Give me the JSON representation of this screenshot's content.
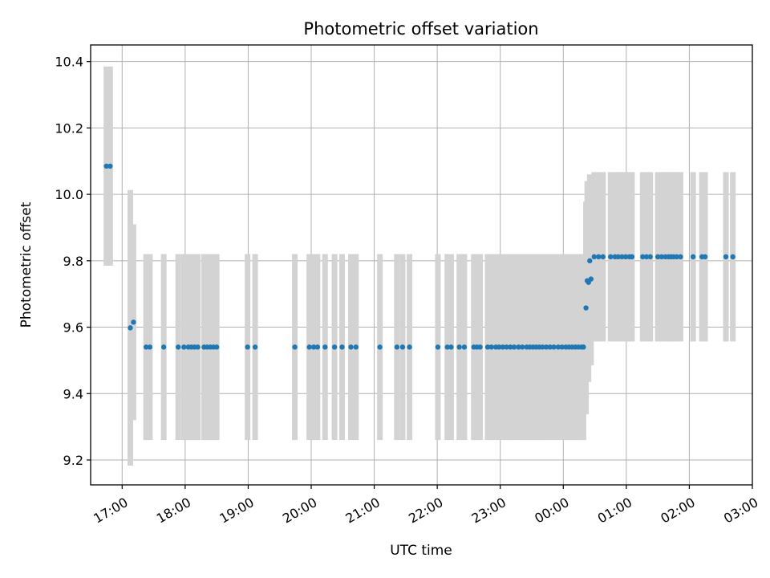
{
  "chart_data": {
    "type": "scatter",
    "title": "Photometric offset variation",
    "xlabel": "UTC time",
    "ylabel": "Photometric offset",
    "x_unit": "hours since 00:00 UTC of first night",
    "xlim": [
      16.5,
      27.0
    ],
    "ylim": [
      9.125,
      10.45
    ],
    "yticks": [
      9.2,
      9.4,
      9.6,
      9.8,
      10.0,
      10.2,
      10.4
    ],
    "xticks": [
      {
        "value": 17,
        "label": "17:00"
      },
      {
        "value": 18,
        "label": "18:00"
      },
      {
        "value": 19,
        "label": "19:00"
      },
      {
        "value": 20,
        "label": "20:00"
      },
      {
        "value": 21,
        "label": "21:00"
      },
      {
        "value": 22,
        "label": "22:00"
      },
      {
        "value": 23,
        "label": "23:00"
      },
      {
        "value": 24,
        "label": "00:00"
      },
      {
        "value": 25,
        "label": "01:00"
      },
      {
        "value": 26,
        "label": "02:00"
      },
      {
        "value": 27,
        "label": "03:00"
      }
    ],
    "grid": true,
    "point_color": "#1f77b4",
    "errorbar_color": "#d3d3d3",
    "points": [
      [
        16.75,
        10.085,
        0.3
      ],
      [
        16.81,
        10.085,
        0.3
      ],
      [
        17.13,
        9.598,
        0.415
      ],
      [
        17.18,
        9.615,
        0.295
      ],
      [
        17.38,
        9.54,
        0.28
      ],
      [
        17.44,
        9.54,
        0.28
      ],
      [
        17.66,
        9.54,
        0.28
      ],
      [
        17.89,
        9.54,
        0.28
      ],
      [
        17.98,
        9.54,
        0.28
      ],
      [
        18.05,
        9.54,
        0.28
      ],
      [
        18.1,
        9.54,
        0.28
      ],
      [
        18.15,
        9.54,
        0.28
      ],
      [
        18.2,
        9.54,
        0.28
      ],
      [
        18.3,
        9.54,
        0.28
      ],
      [
        18.35,
        9.54,
        0.28
      ],
      [
        18.4,
        9.54,
        0.28
      ],
      [
        18.45,
        9.54,
        0.28
      ],
      [
        18.5,
        9.54,
        0.28
      ],
      [
        18.99,
        9.54,
        0.28
      ],
      [
        19.11,
        9.54,
        0.28
      ],
      [
        19.74,
        9.54,
        0.28
      ],
      [
        19.97,
        9.54,
        0.28
      ],
      [
        20.04,
        9.54,
        0.28
      ],
      [
        20.1,
        9.54,
        0.28
      ],
      [
        20.22,
        9.54,
        0.28
      ],
      [
        20.37,
        9.54,
        0.28
      ],
      [
        20.49,
        9.54,
        0.28
      ],
      [
        20.63,
        9.54,
        0.28
      ],
      [
        20.71,
        9.54,
        0.28
      ],
      [
        21.09,
        9.54,
        0.28
      ],
      [
        21.36,
        9.54,
        0.28
      ],
      [
        21.45,
        9.54,
        0.28
      ],
      [
        21.56,
        9.54,
        0.28
      ],
      [
        22.01,
        9.54,
        0.28
      ],
      [
        22.16,
        9.54,
        0.28
      ],
      [
        22.22,
        9.54,
        0.28
      ],
      [
        22.35,
        9.54,
        0.28
      ],
      [
        22.43,
        9.54,
        0.28
      ],
      [
        22.58,
        9.54,
        0.28
      ],
      [
        22.63,
        9.54,
        0.28
      ],
      [
        22.68,
        9.54,
        0.28
      ],
      [
        22.8,
        9.54,
        0.28
      ],
      [
        22.86,
        9.54,
        0.28
      ],
      [
        22.93,
        9.54,
        0.28
      ],
      [
        22.98,
        9.54,
        0.28
      ],
      [
        23.04,
        9.54,
        0.28
      ],
      [
        23.1,
        9.54,
        0.28
      ],
      [
        23.16,
        9.54,
        0.28
      ],
      [
        23.22,
        9.54,
        0.28
      ],
      [
        23.29,
        9.54,
        0.28
      ],
      [
        23.35,
        9.54,
        0.28
      ],
      [
        23.42,
        9.54,
        0.28
      ],
      [
        23.47,
        9.54,
        0.28
      ],
      [
        23.52,
        9.54,
        0.28
      ],
      [
        23.57,
        9.54,
        0.28
      ],
      [
        23.62,
        9.54,
        0.28
      ],
      [
        23.67,
        9.54,
        0.28
      ],
      [
        23.73,
        9.54,
        0.28
      ],
      [
        23.79,
        9.54,
        0.28
      ],
      [
        23.85,
        9.54,
        0.28
      ],
      [
        23.92,
        9.54,
        0.28
      ],
      [
        23.98,
        9.54,
        0.28
      ],
      [
        24.04,
        9.54,
        0.28
      ],
      [
        24.09,
        9.54,
        0.28
      ],
      [
        24.14,
        9.54,
        0.28
      ],
      [
        24.19,
        9.54,
        0.28
      ],
      [
        24.24,
        9.54,
        0.28
      ],
      [
        24.29,
        9.54,
        0.28
      ],
      [
        24.32,
        9.54,
        0.28
      ],
      [
        24.36,
        9.658,
        0.32
      ],
      [
        24.38,
        9.74,
        0.3
      ],
      [
        24.4,
        9.735,
        0.3
      ],
      [
        24.42,
        9.8,
        0.26
      ],
      [
        24.44,
        9.745,
        0.26
      ],
      [
        24.49,
        9.812,
        0.255
      ],
      [
        24.56,
        9.812,
        0.255
      ],
      [
        24.63,
        9.812,
        0.255
      ],
      [
        24.75,
        9.812,
        0.255
      ],
      [
        24.82,
        9.812,
        0.255
      ],
      [
        24.87,
        9.812,
        0.255
      ],
      [
        24.93,
        9.812,
        0.255
      ],
      [
        24.99,
        9.812,
        0.255
      ],
      [
        25.05,
        9.812,
        0.255
      ],
      [
        25.09,
        9.812,
        0.255
      ],
      [
        25.26,
        9.812,
        0.255
      ],
      [
        25.32,
        9.812,
        0.255
      ],
      [
        25.38,
        9.812,
        0.255
      ],
      [
        25.5,
        9.812,
        0.255
      ],
      [
        25.56,
        9.812,
        0.255
      ],
      [
        25.62,
        9.812,
        0.255
      ],
      [
        25.67,
        9.812,
        0.255
      ],
      [
        25.71,
        9.812,
        0.255
      ],
      [
        25.75,
        9.812,
        0.255
      ],
      [
        25.8,
        9.812,
        0.255
      ],
      [
        25.86,
        9.812,
        0.255
      ],
      [
        26.06,
        9.812,
        0.255
      ],
      [
        26.2,
        9.812,
        0.255
      ],
      [
        26.25,
        9.812,
        0.255
      ],
      [
        26.58,
        9.812,
        0.255
      ],
      [
        26.69,
        9.812,
        0.255
      ]
    ]
  }
}
